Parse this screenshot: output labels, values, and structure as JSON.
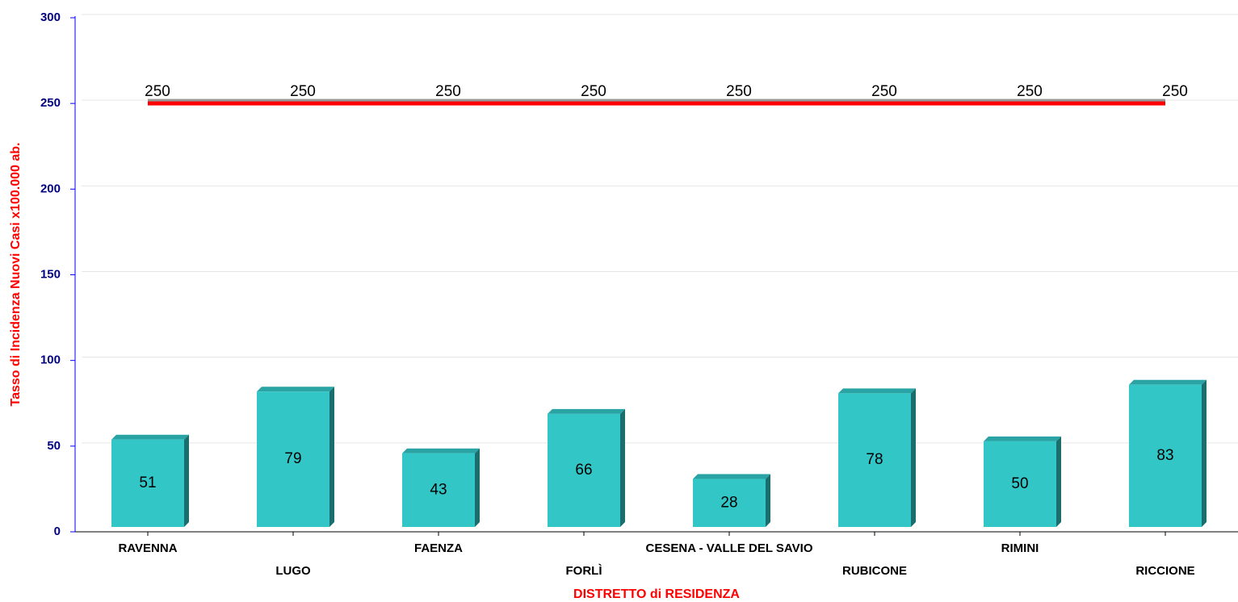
{
  "chart_data": {
    "type": "bar",
    "x_label": "DISTRETTO di RESIDENZA",
    "y_label": "Tasso di Incidenza Nuovi Casi x100.000 ab.",
    "categories": [
      "RAVENNA",
      "LUGO",
      "FAENZA",
      "FORLÌ",
      "CESENA - VALLE DEL SAVIO",
      "RUBICONE",
      "RIMINI",
      "RICCIONE"
    ],
    "series": [
      {
        "type": "bar",
        "color": "#33c6c6",
        "values": [
          51,
          79,
          43,
          66,
          28,
          78,
          50,
          83
        ]
      },
      {
        "type": "line",
        "color": "#ff0000",
        "values": [
          250,
          250,
          250,
          250,
          250,
          250,
          250,
          250
        ]
      }
    ],
    "ylim": [
      0,
      300
    ],
    "yticks": [
      0,
      50,
      100,
      150,
      200,
      250,
      300
    ],
    "grid": true
  }
}
